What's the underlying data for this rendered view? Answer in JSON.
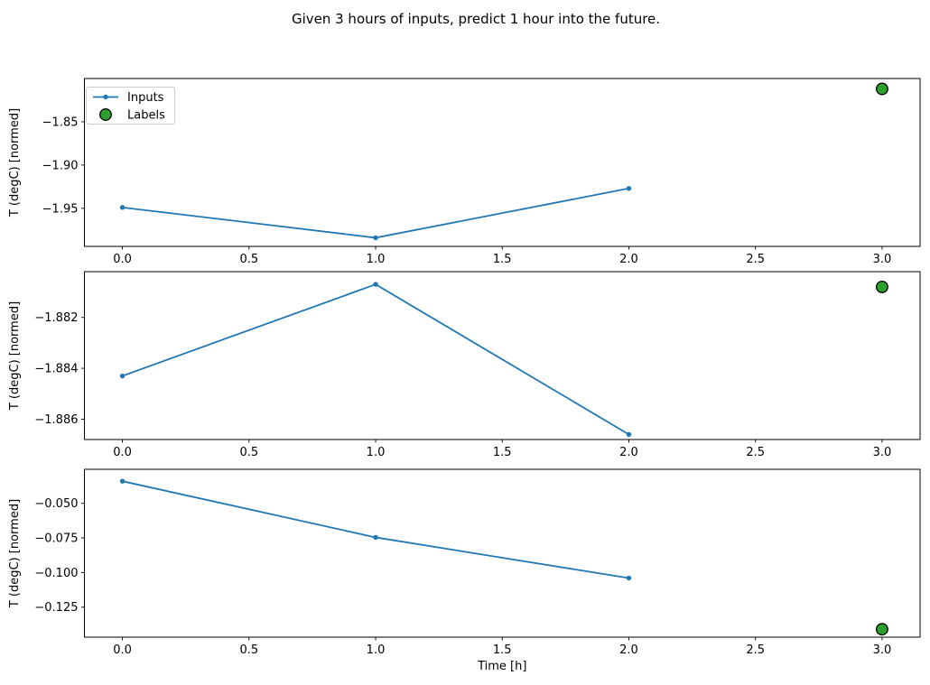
{
  "title": "Given 3 hours of inputs, predict 1 hour into the future.",
  "chart_data": {
    "type": "line",
    "title": "Given 3 hours of inputs, predict 1 hour into the future.",
    "xlabel": "Time [h]",
    "ylabel": "T (degC) [normed]",
    "xlim": [
      -0.15,
      3.15
    ],
    "grid": false,
    "xticks": [
      {
        "value": 0.0,
        "label": "0.0"
      },
      {
        "value": 0.5,
        "label": "0.5"
      },
      {
        "value": 1.0,
        "label": "1.0"
      },
      {
        "value": 1.5,
        "label": "1.5"
      },
      {
        "value": 2.0,
        "label": "2.0"
      },
      {
        "value": 2.5,
        "label": "2.5"
      },
      {
        "value": 3.0,
        "label": "3.0"
      }
    ],
    "legend": {
      "position": "upper-left of first subplot",
      "entries": [
        "Inputs",
        "Labels"
      ]
    },
    "colors": {
      "inputs": "#1f77b4",
      "labels_fill": "#2ca02c",
      "labels_edge": "#000000"
    },
    "subplots": [
      {
        "ylabel": "T (degC) [normed]",
        "ylim": [
          -1.994,
          -1.8
        ],
        "yticks": [
          {
            "value": -1.85,
            "label": "−1.85"
          },
          {
            "value": -1.9,
            "label": "−1.90"
          },
          {
            "value": -1.95,
            "label": "−1.95"
          }
        ],
        "series": [
          {
            "name": "Inputs",
            "style": "line-marker",
            "x": [
              0,
              1,
              2
            ],
            "y": [
              -1.949,
              -1.984,
              -1.927
            ]
          },
          {
            "name": "Labels",
            "style": "scatter",
            "x": [
              3
            ],
            "y": [
              -1.812
            ]
          }
        ]
      },
      {
        "ylabel": "T (degC) [normed]",
        "ylim": [
          -1.8868,
          -1.8802
        ],
        "yticks": [
          {
            "value": -1.882,
            "label": "−1.882"
          },
          {
            "value": -1.884,
            "label": "−1.884"
          },
          {
            "value": -1.886,
            "label": "−1.886"
          }
        ],
        "series": [
          {
            "name": "Inputs",
            "style": "line-marker",
            "x": [
              0,
              1,
              2
            ],
            "y": [
              -1.8843,
              -1.8807,
              -1.8866
            ]
          },
          {
            "name": "Labels",
            "style": "scatter",
            "x": [
              3
            ],
            "y": [
              -1.8808
            ]
          }
        ]
      },
      {
        "ylabel": "T (degC) [normed]",
        "ylim": [
          -0.1467,
          -0.0254
        ],
        "yticks": [
          {
            "value": -0.05,
            "label": "−0.050"
          },
          {
            "value": -0.075,
            "label": "−0.075"
          },
          {
            "value": -0.1,
            "label": "−0.100"
          },
          {
            "value": -0.125,
            "label": "−0.125"
          }
        ],
        "series": [
          {
            "name": "Inputs",
            "style": "line-marker",
            "x": [
              0,
              1,
              2
            ],
            "y": [
              -0.034,
              -0.0746,
              -0.104
            ]
          },
          {
            "name": "Labels",
            "style": "scatter",
            "x": [
              3
            ],
            "y": [
              -0.141
            ]
          }
        ]
      }
    ]
  }
}
